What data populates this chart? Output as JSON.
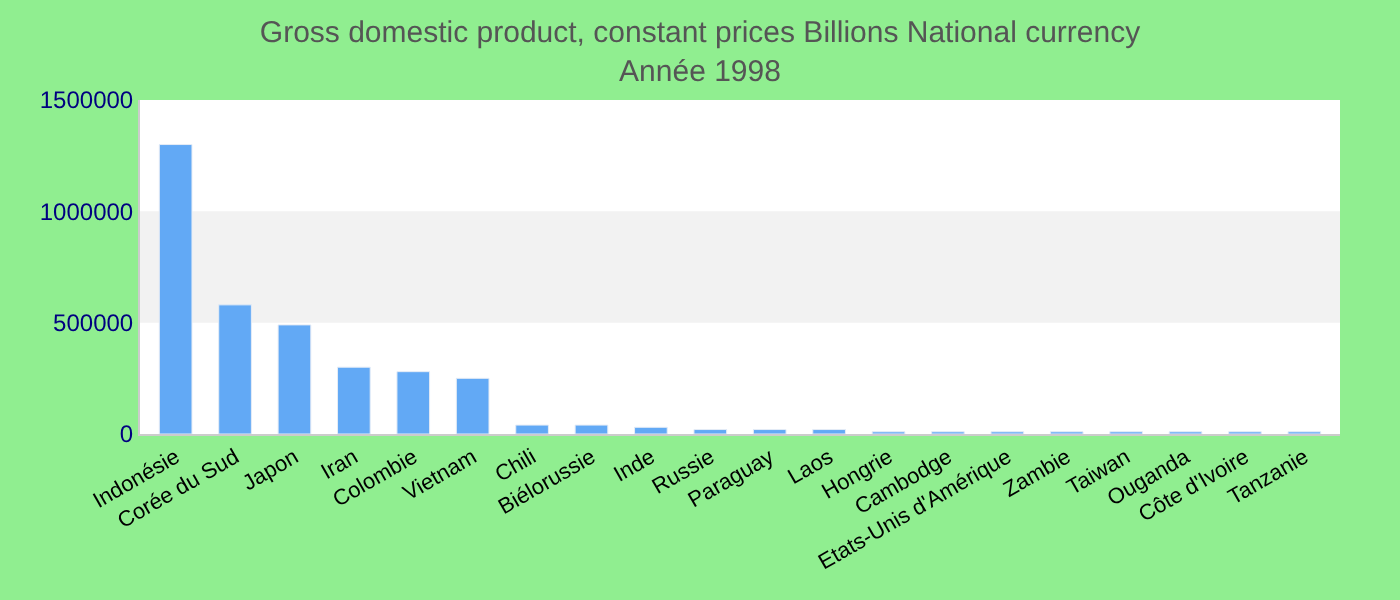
{
  "chart_data": {
    "type": "bar",
    "title": "Gross domestic product, constant prices Billions National currency",
    "subtitle": "Année 1998",
    "categories": [
      "Indonésie",
      "Corée du Sud",
      "Japon",
      "Iran",
      "Colombie",
      "Vietnam",
      "Chili",
      "Biélorussie",
      "Inde",
      "Russie",
      "Paraguay",
      "Laos",
      "Hongrie",
      "Cambodge",
      "Etats-Unis d'Amérique",
      "Zambie",
      "Taiwan",
      "Ouganda",
      "Côte d'Ivoire",
      "Tanzanie"
    ],
    "values": [
      1300000,
      580000,
      490000,
      300000,
      280000,
      250000,
      40000,
      40000,
      30000,
      20000,
      20000,
      20000,
      10000,
      10000,
      10000,
      10000,
      10000,
      10000,
      10000,
      10000
    ],
    "color": "#62a9f5",
    "ylim": [
      0,
      1500000
    ],
    "yticks": [
      0,
      500000,
      1000000,
      1500000
    ],
    "bands": [
      {
        "axis": "y",
        "from": 500000,
        "to": 1000000,
        "color": "#f2f2f2"
      }
    ]
  }
}
